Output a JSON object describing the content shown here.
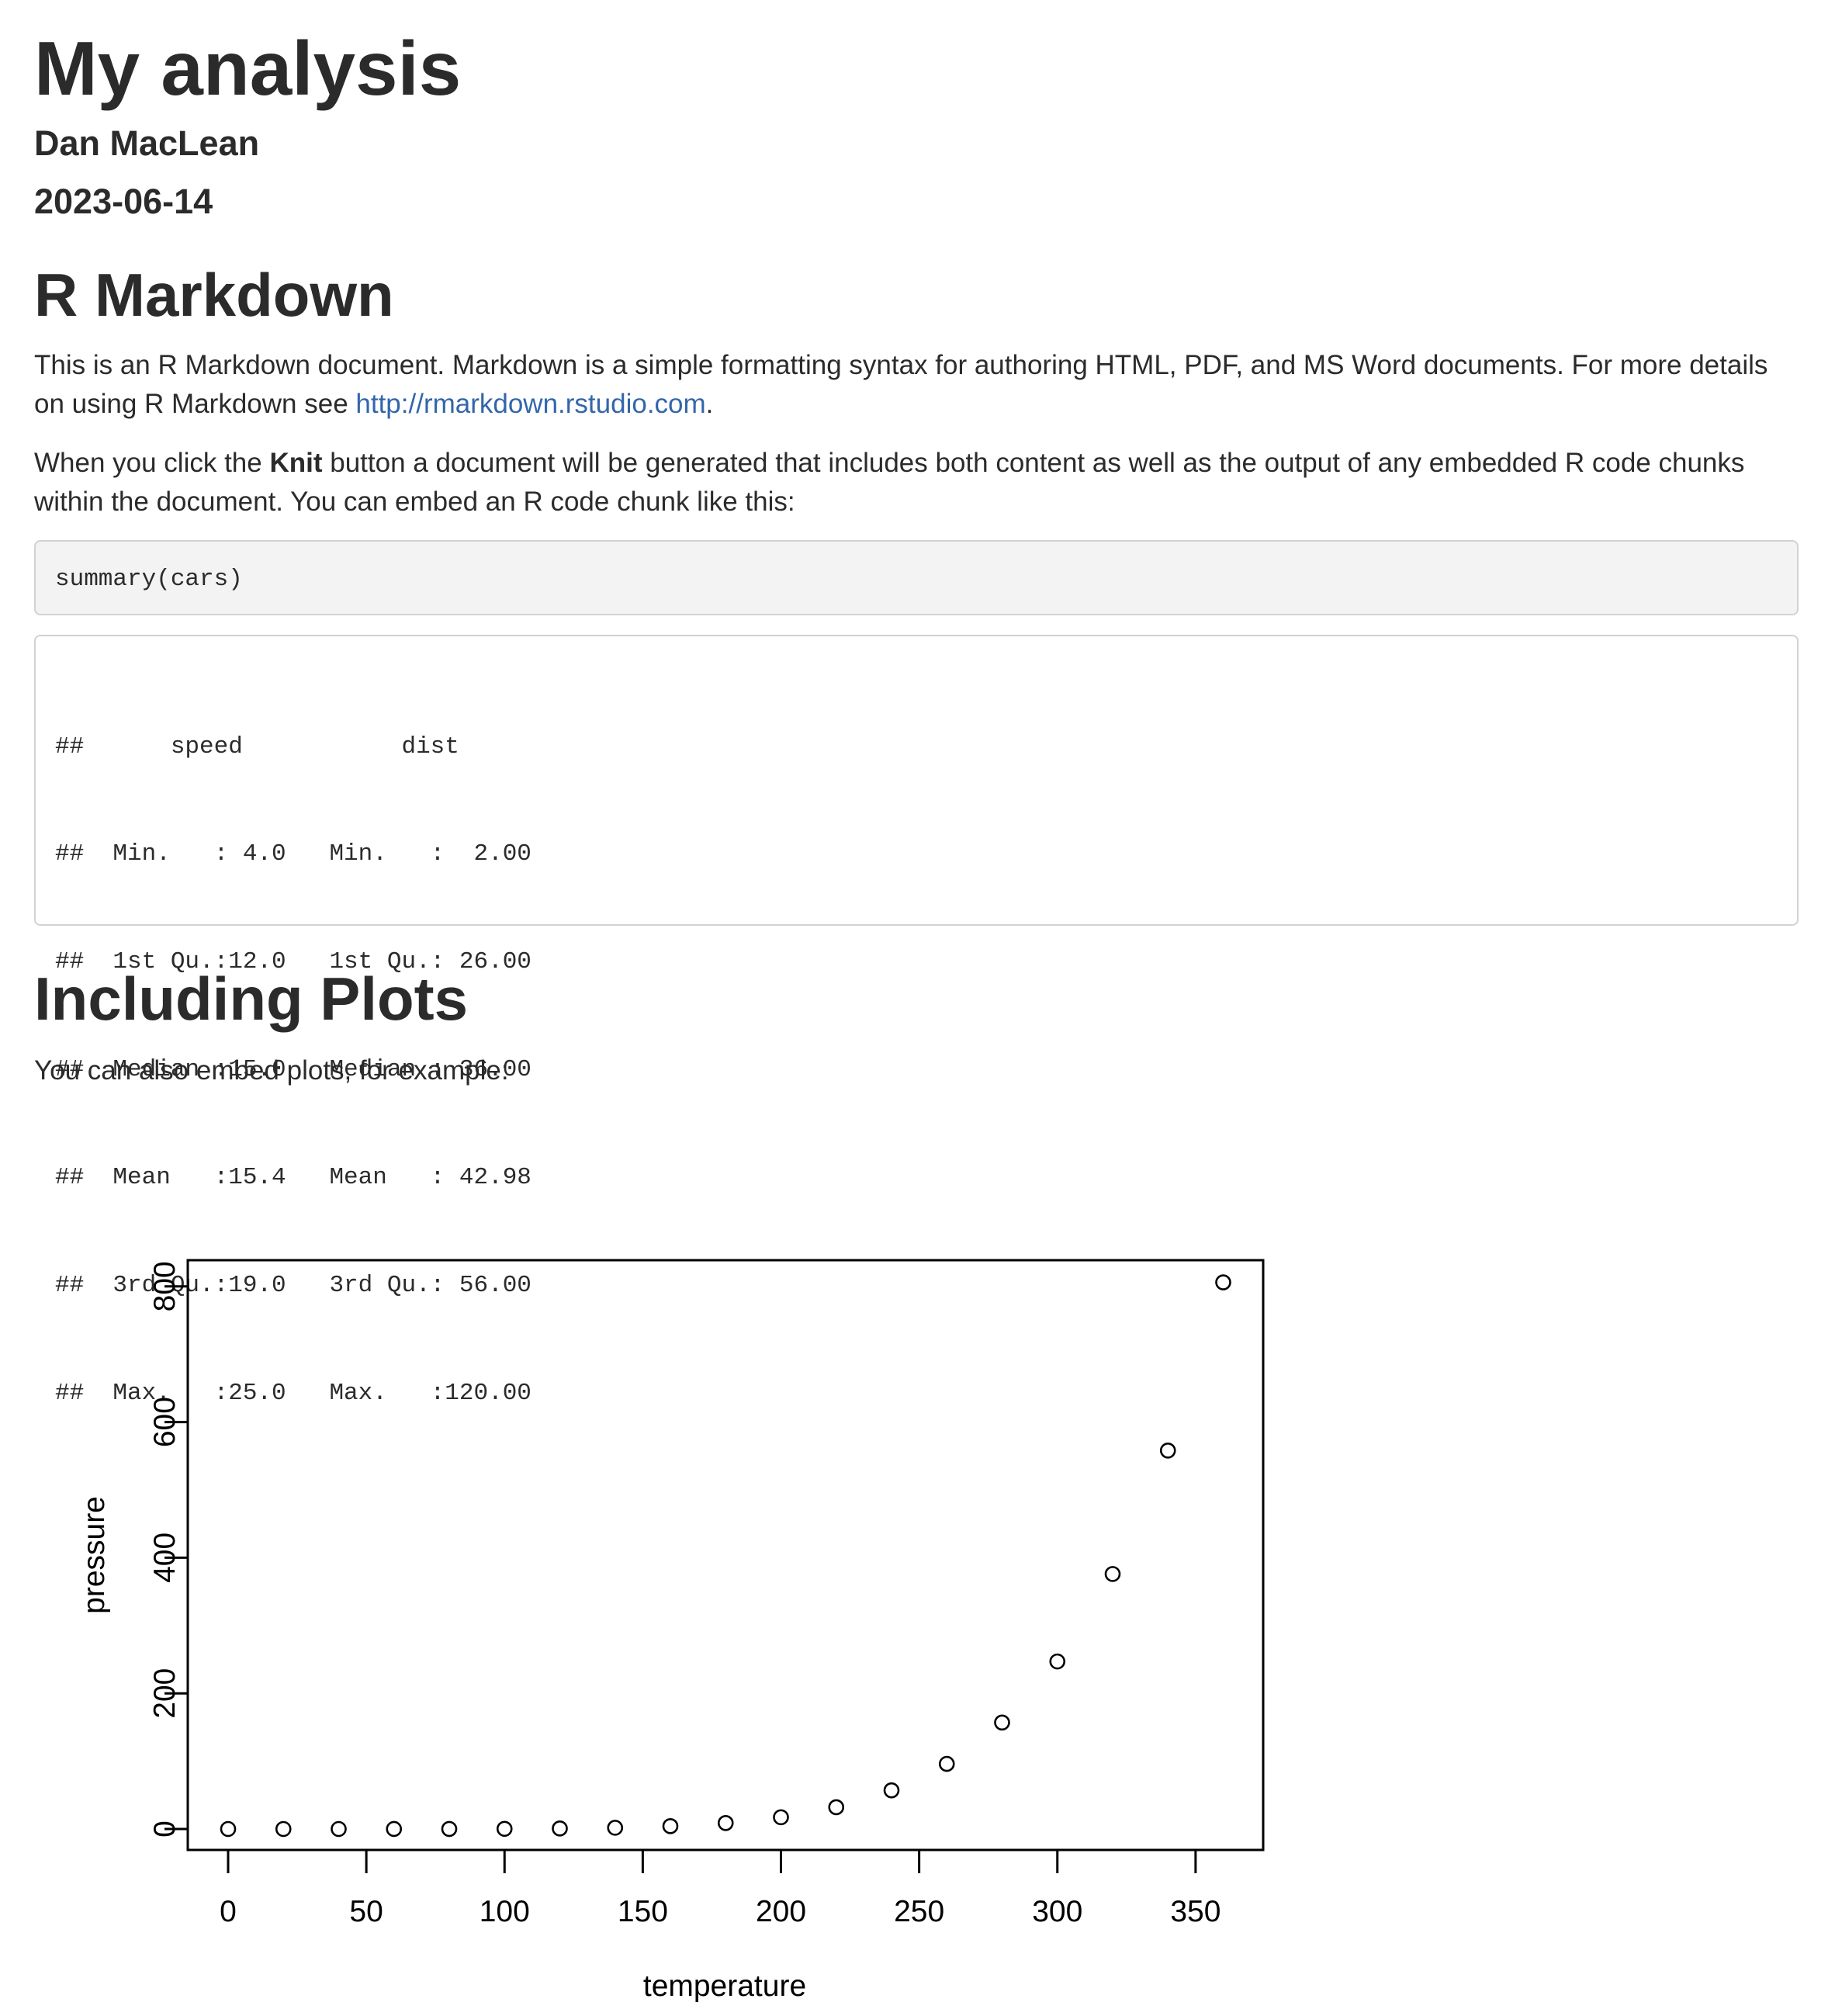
{
  "document": {
    "title": "My analysis",
    "author": "Dan MacLean",
    "date": "2023-06-14"
  },
  "section1": {
    "heading": "R Markdown",
    "p1_text": "This is an R Markdown document. Markdown is a simple formatting syntax for authoring HTML, PDF, and MS Word documents. For more details on using R Markdown see ",
    "p1_link": "http://rmarkdown.rstudio.com",
    "p1_end": ".",
    "p2_start": "When you click the ",
    "p2_bold": "Knit",
    "p2_end": " button a document will be generated that includes both content as well as the output of any embedded R code chunks within the document. You can embed an R code chunk like this:",
    "code": "summary(cars)",
    "output_lines": [
      "##      speed           dist       ",
      "##  Min.   : 4.0   Min.   :  2.00  ",
      "##  1st Qu.:12.0   1st Qu.: 26.00  ",
      "##  Median :15.0   Median : 36.00  ",
      "##  Mean   :15.4   Mean   : 42.98  ",
      "##  3rd Qu.:19.0   3rd Qu.: 56.00  ",
      "##  Max.   :25.0   Max.   :120.00  "
    ]
  },
  "section2": {
    "heading": "Including Plots",
    "text": "You can also embed plots, for example:"
  },
  "chart_data": {
    "type": "scatter",
    "title": "",
    "xlabel": "temperature",
    "ylabel": "pressure",
    "x": [
      0,
      20,
      40,
      60,
      80,
      100,
      120,
      140,
      160,
      180,
      200,
      220,
      240,
      260,
      280,
      300,
      320,
      340,
      360
    ],
    "y": [
      0.0002,
      0.0012,
      0.006,
      0.03,
      0.09,
      0.27,
      0.75,
      1.85,
      4.2,
      8.8,
      17.3,
      32.1,
      57,
      96,
      157,
      247,
      376,
      558,
      806
    ],
    "xlim": [
      0,
      360
    ],
    "ylim": [
      0,
      806
    ],
    "xticks": [
      "0",
      "50",
      "100",
      "150",
      "200",
      "250",
      "300",
      "350"
    ],
    "yticks": [
      "0",
      "200",
      "400",
      "600",
      "800"
    ],
    "marker": "open-circle",
    "grid": false,
    "color": "#000000"
  }
}
